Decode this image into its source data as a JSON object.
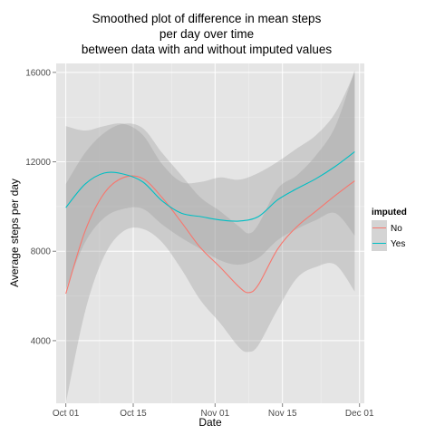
{
  "chart_data": {
    "type": "line",
    "title": [
      "Smoothed plot of difference in mean steps",
      "per day over time",
      "between data with and without imputed values"
    ],
    "xlabel": "Date",
    "ylabel": "Average steps per day",
    "x_ticks": [
      "2012-10-01",
      "2012-10-15",
      "2012-11-01",
      "2012-11-15",
      "2012-12-01"
    ],
    "x_tick_labels": [
      "Oct 01",
      "Oct 15",
      "Nov 01",
      "Nov 15",
      "Dec 01"
    ],
    "xlim": [
      "2012-09-29",
      "2012-12-02"
    ],
    "y_ticks": [
      4000,
      8000,
      12000,
      16000
    ],
    "y_tick_labels": [
      "4000",
      "8000",
      "12000",
      "16000"
    ],
    "ylim": [
      1200,
      16400
    ],
    "grid": true,
    "legend": {
      "title": "imputed",
      "placement": "right"
    },
    "series": [
      {
        "name": "No",
        "color": "#F8766D",
        "x": [
          "2012-10-01",
          "2012-10-05",
          "2012-10-09",
          "2012-10-13",
          "2012-10-17",
          "2012-10-21",
          "2012-10-25",
          "2012-10-29",
          "2012-11-02",
          "2012-11-06",
          "2012-11-08",
          "2012-11-10",
          "2012-11-14",
          "2012-11-18",
          "2012-11-22",
          "2012-11-26",
          "2012-11-30"
        ],
        "y": [
          6100,
          8900,
          10600,
          11300,
          11250,
          10400,
          9300,
          8150,
          7300,
          6400,
          6150,
          6500,
          8100,
          9100,
          9800,
          10500,
          11150
        ],
        "ci_low": [
          1200,
          5300,
          7800,
          8900,
          9000,
          8400,
          7200,
          5800,
          4800,
          3700,
          3500,
          3800,
          5400,
          6800,
          7300,
          7400,
          6200
        ],
        "ci_high": [
          11000,
          12400,
          13300,
          13700,
          13500,
          12400,
          11400,
          10400,
          9800,
          9100,
          8800,
          9200,
          10800,
          11400,
          12300,
          13600,
          16100
        ]
      },
      {
        "name": "Yes",
        "color": "#00BFC4",
        "x": [
          "2012-10-01",
          "2012-10-05",
          "2012-10-09",
          "2012-10-13",
          "2012-10-17",
          "2012-10-21",
          "2012-10-25",
          "2012-10-29",
          "2012-11-02",
          "2012-11-06",
          "2012-11-10",
          "2012-11-14",
          "2012-11-18",
          "2012-11-22",
          "2012-11-26",
          "2012-11-30"
        ],
        "y": [
          9950,
          11000,
          11500,
          11450,
          11100,
          10250,
          9700,
          9550,
          9400,
          9350,
          9550,
          10300,
          10800,
          11250,
          11800,
          12450
        ],
        "ci_low": [
          6300,
          8400,
          9500,
          9900,
          9900,
          9200,
          8600,
          8100,
          7600,
          7400,
          7700,
          8500,
          9000,
          9400,
          9700,
          8700
        ],
        "ci_high": [
          13600,
          13400,
          13600,
          13700,
          13200,
          11900,
          11100,
          11100,
          11300,
          11200,
          11500,
          12000,
          12600,
          13200,
          14200,
          16000
        ]
      }
    ]
  }
}
